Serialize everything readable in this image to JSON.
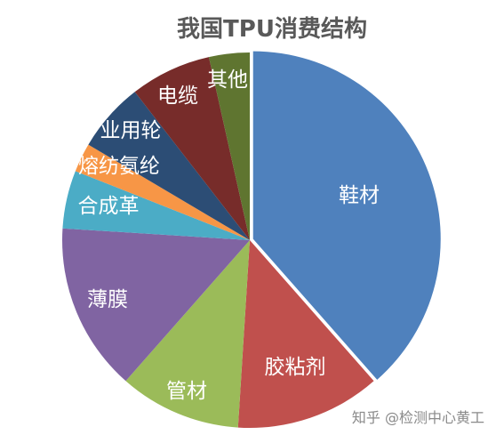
{
  "watermark": "知乎 @检测中心黄工",
  "chart_data": {
    "type": "pie",
    "title": "我国TPU消费结构",
    "categories": [
      "鞋材",
      "胶粘剂",
      "管材",
      "薄膜",
      "合成革",
      "熔纺氨纶",
      "业用轮",
      "电缆",
      "其他"
    ],
    "values": [
      38.5,
      12.5,
      10.5,
      14.5,
      5,
      2.5,
      6,
      7,
      3.5
    ],
    "colors": [
      "#4F81BD",
      "#C0504D",
      "#9BBB59",
      "#8064A2",
      "#4BACC6",
      "#F79646",
      "#2C4D75",
      "#772C2A",
      "#5F7530"
    ],
    "exploded": [
      true,
      false,
      false,
      false,
      false,
      false,
      false,
      false,
      false
    ]
  }
}
